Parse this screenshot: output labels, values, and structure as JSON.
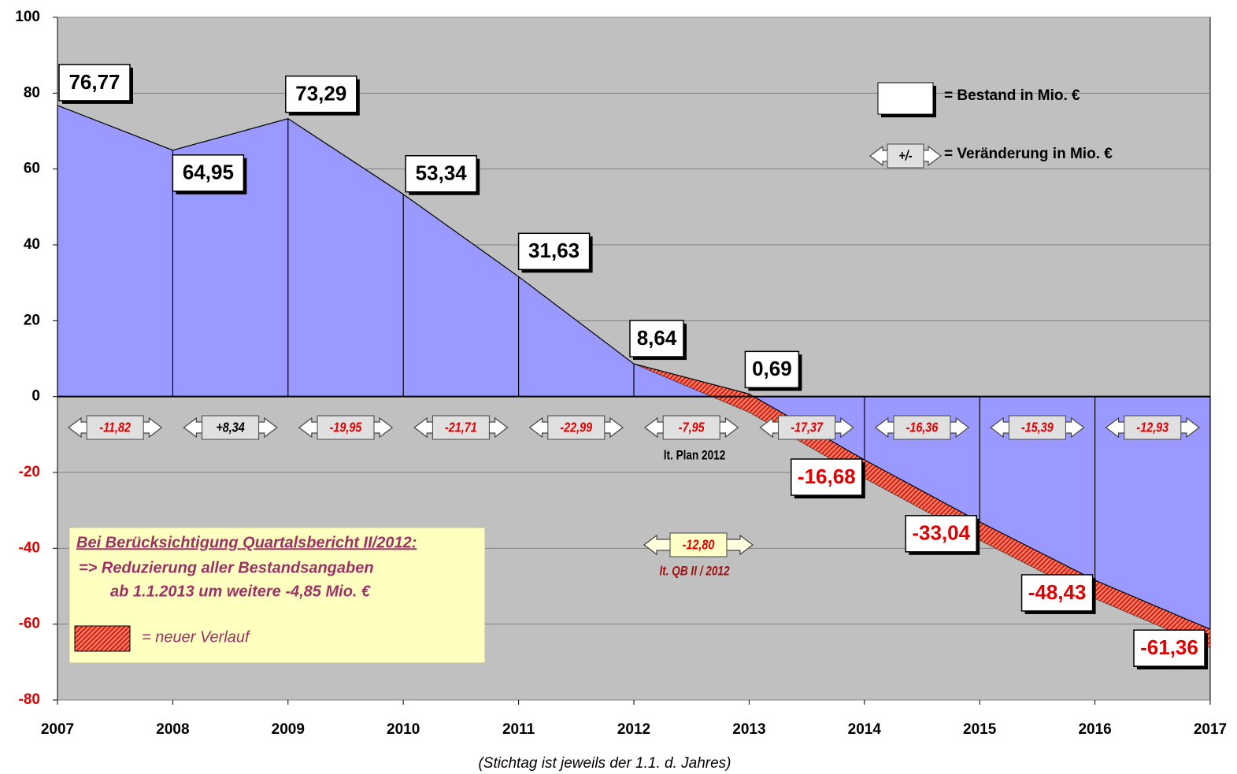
{
  "chart_data": {
    "type": "area",
    "x": [
      2007,
      2008,
      2009,
      2010,
      2011,
      2012,
      2013,
      2014,
      2015,
      2016,
      2017
    ],
    "xlim": [
      2007,
      2017
    ],
    "ylim": [
      -80,
      100
    ],
    "yticks": [
      -80,
      -60,
      -40,
      -20,
      0,
      20,
      40,
      60,
      80,
      100
    ],
    "grid": true,
    "series": [
      {
        "name": "= Bestand in Mio. €",
        "color": "#9999ff",
        "values": [
          76.77,
          64.95,
          73.29,
          53.34,
          31.63,
          8.64,
          0.69,
          -16.68,
          -33.04,
          -48.43,
          -61.36
        ],
        "value_labels": [
          "76,77",
          "64,95",
          "73,29",
          "53,34",
          "31,63",
          "8,64",
          "0,69",
          "-16,68",
          "-33,04",
          "-48,43",
          "-61,36"
        ]
      },
      {
        "name": "= neuer Verlauf",
        "color": "#e8341c",
        "values": [
          null,
          null,
          null,
          null,
          null,
          8.64,
          -4.16,
          -21.53,
          -37.89,
          -53.28,
          -66.21
        ]
      }
    ],
    "changes": [
      "-11,82",
      "+8,34",
      "-19,95",
      "-21,71",
      "-22,99",
      "-7,95",
      "-17,37",
      "-16,36",
      "-15,39",
      "-12,93"
    ],
    "change_legend": {
      "symbol": "+/-",
      "text": "= Veränderung in Mio. €"
    },
    "annotations": {
      "plan_note": "lt. Plan 2012",
      "qb_change": "-12,80",
      "qb_note": "lt. QB II / 2012"
    },
    "note_box": {
      "title": "Bei Berücksichtigung Quartalsbericht II/2012:",
      "lines": [
        "=> Reduzierung aller Bestandsangaben",
        "ab 1.1.2013 um weitere  -4,85  Mio. €"
      ]
    },
    "x_label": "(Stichtag ist jeweils der 1.1. d. Jahres)"
  }
}
